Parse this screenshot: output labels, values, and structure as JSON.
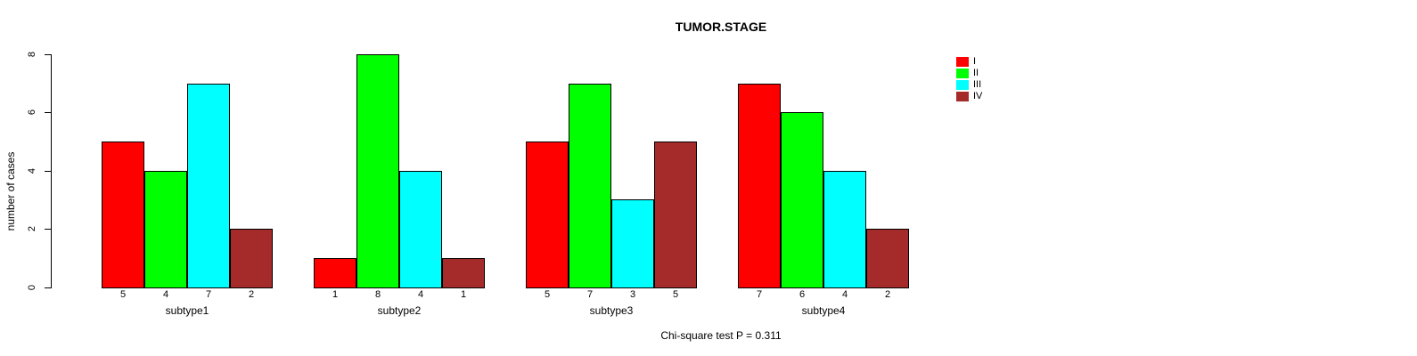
{
  "title": "TUMOR.STAGE",
  "chart_data": {
    "type": "bar",
    "grouped": true,
    "title": "TUMOR.STAGE",
    "xlabel": "",
    "ylabel": "number of cases",
    "ylim": [
      0,
      8
    ],
    "yticks": [
      0,
      2,
      4,
      6,
      8
    ],
    "grid": false,
    "legend_position": "top-right-outside",
    "categories": [
      "subtype1",
      "subtype2",
      "subtype3",
      "subtype4"
    ],
    "series": [
      {
        "name": "I",
        "color": "#FF0000",
        "values": [
          5,
          1,
          5,
          7
        ]
      },
      {
        "name": "II",
        "color": "#00FF00",
        "values": [
          4,
          8,
          7,
          6
        ]
      },
      {
        "name": "III",
        "color": "#00FFFF",
        "values": [
          7,
          4,
          3,
          4
        ]
      },
      {
        "name": "IV",
        "color": "#A52A2A",
        "values": [
          2,
          1,
          5,
          2
        ]
      }
    ],
    "bar_value_labels_shown": true,
    "annotation": "Chi-square test P = 0.311"
  }
}
